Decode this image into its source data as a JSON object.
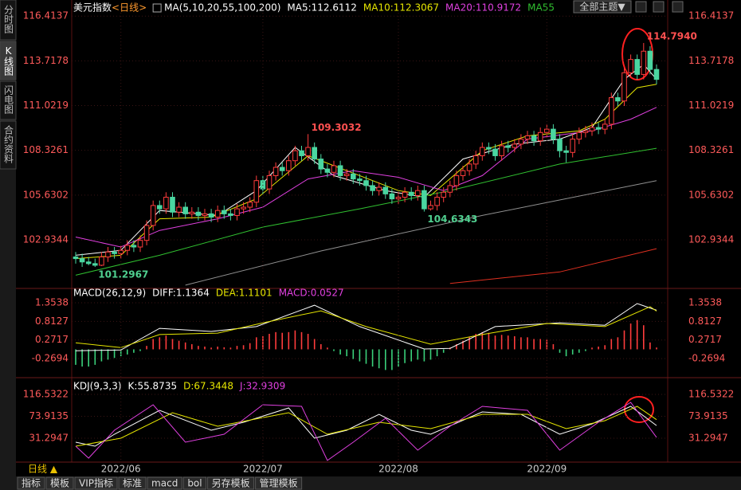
{
  "sidebar": [
    "分时图",
    "K线图",
    "闪电图",
    "合约资料"
  ],
  "toolbar": {
    "theme_button": "全部主题▼"
  },
  "bottom_tabs": [
    "指标",
    "模板",
    "VIP指标",
    "标准",
    "macd",
    "bol",
    "另存模板",
    "管理模板"
  ],
  "chart_data": [
    {
      "type": "candlestick",
      "title": "美元指数",
      "period": "<日线>",
      "indicator": "MA(5,10,20,55,100,200)",
      "up_color": "#ff3c3c",
      "down_color": "#4ad6a0",
      "candles": [
        [
          101.9,
          102.2,
          101.5,
          101.8
        ],
        [
          101.8,
          102.1,
          101.3,
          101.6
        ],
        [
          101.6,
          101.9,
          101.4,
          101.5
        ],
        [
          101.5,
          101.8,
          101.2967,
          101.4
        ],
        [
          101.4,
          102.2,
          101.35,
          101.9
        ],
        [
          101.9,
          102.5,
          101.6,
          102.2
        ],
        [
          102.2,
          102.5,
          101.8,
          102.1
        ],
        [
          102.1,
          102.6,
          101.8,
          102.3
        ],
        [
          102.3,
          102.9,
          102.0,
          102.6
        ],
        [
          102.6,
          102.9,
          102.2,
          102.5
        ],
        [
          102.5,
          103.2,
          102.2,
          102.9
        ],
        [
          102.9,
          104.1,
          102.6,
          103.8
        ],
        [
          103.8,
          105.3,
          103.5,
          105.0
        ],
        [
          105.0,
          105.3,
          104.5,
          104.8
        ],
        [
          104.8,
          105.8,
          104.5,
          105.5
        ],
        [
          105.5,
          105.8,
          104.3,
          104.6
        ],
        [
          104.6,
          105.2,
          104.3,
          104.9
        ],
        [
          104.9,
          105.2,
          104.2,
          104.5
        ],
        [
          104.5,
          104.9,
          104.2,
          104.6
        ],
        [
          104.6,
          104.9,
          104.1,
          104.4
        ],
        [
          104.4,
          104.8,
          104.1,
          104.5
        ],
        [
          104.5,
          104.8,
          104.0,
          104.3
        ],
        [
          104.3,
          105.0,
          104.0,
          104.7
        ],
        [
          104.7,
          105.0,
          104.2,
          104.5
        ],
        [
          104.5,
          104.8,
          104.1,
          104.4
        ],
        [
          104.4,
          105.1,
          104.1,
          104.8
        ],
        [
          104.8,
          105.2,
          104.5,
          104.9
        ],
        [
          104.9,
          105.5,
          104.6,
          105.2
        ],
        [
          105.2,
          106.8,
          104.9,
          106.5
        ],
        [
          106.5,
          106.8,
          105.7,
          106.0
        ],
        [
          106.0,
          107.1,
          105.7,
          106.8
        ],
        [
          106.8,
          107.6,
          106.5,
          107.3
        ],
        [
          107.3,
          107.6,
          106.8,
          107.1
        ],
        [
          107.1,
          108.0,
          106.8,
          107.7
        ],
        [
          107.7,
          108.6,
          107.4,
          108.3
        ],
        [
          108.3,
          108.6,
          107.7,
          108.0
        ],
        [
          108.0,
          109.3032,
          107.7,
          108.5
        ],
        [
          108.5,
          108.8,
          107.5,
          107.8
        ],
        [
          107.8,
          108.1,
          106.9,
          107.2
        ],
        [
          107.2,
          107.5,
          106.7,
          107.0
        ],
        [
          107.0,
          107.7,
          106.7,
          107.4
        ],
        [
          107.4,
          107.7,
          106.5,
          106.8
        ],
        [
          106.8,
          107.2,
          106.5,
          106.9
        ],
        [
          106.9,
          107.2,
          106.3,
          106.6
        ],
        [
          106.6,
          106.9,
          106.2,
          106.5
        ],
        [
          106.5,
          106.8,
          105.9,
          106.2
        ],
        [
          106.2,
          106.5,
          105.6,
          105.9
        ],
        [
          105.9,
          106.4,
          105.6,
          106.1
        ],
        [
          106.1,
          106.4,
          105.4,
          105.7
        ],
        [
          105.7,
          106.0,
          105.1,
          105.4
        ],
        [
          105.4,
          105.8,
          105.1,
          105.5
        ],
        [
          105.5,
          106.1,
          105.2,
          105.8
        ],
        [
          105.8,
          106.1,
          105.3,
          105.6
        ],
        [
          105.6,
          106.2,
          105.3,
          105.9
        ],
        [
          105.9,
          106.2,
          104.6343,
          104.8
        ],
        [
          104.8,
          105.3,
          104.7,
          105.0
        ],
        [
          105.0,
          105.8,
          104.7,
          105.5
        ],
        [
          105.5,
          106.1,
          105.2,
          105.8
        ],
        [
          105.8,
          106.5,
          105.5,
          106.2
        ],
        [
          106.2,
          107.1,
          105.9,
          106.8
        ],
        [
          106.8,
          107.4,
          106.5,
          107.1
        ],
        [
          107.1,
          107.8,
          106.8,
          107.5
        ],
        [
          107.5,
          108.3,
          107.2,
          108.0
        ],
        [
          108.0,
          108.8,
          107.7,
          108.5
        ],
        [
          108.5,
          108.8,
          108.1,
          108.4
        ],
        [
          108.4,
          108.7,
          107.7,
          108.0
        ],
        [
          108.0,
          108.9,
          107.7,
          108.6
        ],
        [
          108.6,
          108.9,
          108.2,
          108.5
        ],
        [
          108.5,
          109.0,
          108.2,
          108.7
        ],
        [
          108.7,
          109.3,
          108.4,
          109.0
        ],
        [
          109.0,
          109.5,
          108.7,
          109.2
        ],
        [
          109.2,
          109.5,
          108.6,
          108.9
        ],
        [
          108.9,
          109.7,
          108.6,
          109.4
        ],
        [
          109.4,
          109.9,
          109.1,
          109.6
        ],
        [
          109.6,
          109.9,
          108.7,
          109.0
        ],
        [
          109.0,
          109.3,
          107.9,
          108.3
        ],
        [
          108.3,
          108.6,
          107.6,
          108.2
        ],
        [
          108.2,
          109.3,
          107.9,
          109.0
        ],
        [
          109.0,
          109.7,
          108.7,
          109.4
        ],
        [
          109.4,
          109.8,
          109.1,
          109.5
        ],
        [
          109.5,
          110.0,
          109.2,
          109.7
        ],
        [
          109.7,
          110.0,
          109.3,
          109.6
        ],
        [
          109.6,
          110.2,
          109.3,
          109.9
        ],
        [
          109.9,
          111.8,
          109.6,
          111.5
        ],
        [
          111.5,
          111.8,
          111.0,
          111.3
        ],
        [
          111.3,
          113.3,
          111.0,
          113.0
        ],
        [
          113.0,
          114.1,
          112.7,
          113.8
        ],
        [
          113.8,
          114.1,
          112.6,
          112.9
        ],
        [
          112.9,
          114.794,
          112.6,
          114.3
        ],
        [
          114.3,
          114.6,
          112.9,
          113.2
        ],
        [
          113.2,
          113.5,
          112.3,
          112.6
        ]
      ],
      "annotations": [
        "114.7940",
        "109.3032",
        "104.6343",
        "101.2967"
      ],
      "series": [
        {
          "readout": "MA5:112.6112",
          "color": "#ffffff",
          "x": [
            0,
            7,
            13,
            22,
            28,
            34,
            40,
            48,
            54,
            60,
            68,
            75,
            80,
            85,
            88,
            90
          ],
          "values": [
            102.0,
            102.3,
            104.7,
            104.4,
            105.9,
            108.5,
            106.8,
            105.9,
            105.5,
            107.8,
            108.7,
            109.0,
            109.7,
            112.6,
            113.5,
            112.6112
          ]
        },
        {
          "readout": "MA10:112.3067",
          "color": "#e6e600",
          "x": [
            0,
            7,
            13,
            21,
            28,
            36,
            42,
            50,
            55,
            63,
            70,
            78,
            82,
            87,
            90
          ],
          "values": [
            101.8,
            102.0,
            104.2,
            104.3,
            105.4,
            108.0,
            107.1,
            105.9,
            105.6,
            108.3,
            109.2,
            109.5,
            110.2,
            112.1,
            112.3067
          ]
        },
        {
          "readout": "MA20:110.9172",
          "color": "#e040e0",
          "x": [
            0,
            7,
            13,
            22,
            29,
            36,
            43,
            50,
            57,
            63,
            70,
            80,
            86,
            90
          ],
          "values": [
            103.1,
            102.5,
            103.5,
            104.2,
            104.9,
            106.6,
            107.1,
            106.7,
            105.9,
            106.8,
            109.0,
            109.5,
            110.2,
            110.9172
          ]
        },
        {
          "readout": "MA55",
          "color": "#30c030",
          "x": [
            0,
            13,
            29,
            44,
            58,
            75,
            90
          ],
          "values": [
            100.8,
            102.0,
            103.7,
            104.8,
            105.9,
            107.5,
            108.45
          ]
        },
        {
          "color": "#909090",
          "x": [
            17,
            38,
            63,
            90
          ],
          "values": [
            100.2,
            102.26,
            104.4,
            106.5
          ]
        },
        {
          "color": "#e03020",
          "x": [
            58,
            75,
            90
          ],
          "values": [
            100.3,
            101.0,
            102.4
          ]
        }
      ],
      "ylim": [
        100.1,
        117.0
      ],
      "yticks": [
        116.4137,
        113.7178,
        111.0219,
        108.3261,
        105.6302,
        102.9344
      ]
    },
    {
      "type": "macd",
      "title": "MACD(26,12,9)",
      "histogram": {
        "readout": "MACD:0.0527",
        "readout_color": "#e040e0",
        "colors": [
          "#ff3c3c",
          "#3ad07a"
        ],
        "values": [
          -0.45,
          -0.5,
          -0.5,
          -0.45,
          -0.35,
          -0.3,
          -0.25,
          -0.2,
          -0.15,
          -0.1,
          -0.05,
          0.1,
          0.3,
          0.35,
          0.4,
          0.3,
          0.25,
          0.2,
          0.15,
          0.1,
          0.08,
          0.05,
          0.08,
          0.06,
          0.05,
          0.1,
          0.12,
          0.18,
          0.35,
          0.38,
          0.45,
          0.5,
          0.48,
          0.5,
          0.55,
          0.5,
          0.45,
          0.3,
          0.15,
          0.05,
          -0.05,
          -0.15,
          -0.2,
          -0.28,
          -0.35,
          -0.42,
          -0.5,
          -0.55,
          -0.6,
          -0.6,
          -0.5,
          -0.4,
          -0.35,
          -0.3,
          -0.35,
          -0.3,
          -0.2,
          -0.1,
          0.05,
          0.15,
          0.25,
          0.35,
          0.45,
          0.5,
          0.48,
          0.4,
          0.42,
          0.4,
          0.38,
          0.35,
          0.35,
          0.3,
          0.3,
          0.28,
          0.15,
          -0.1,
          -0.2,
          -0.15,
          -0.1,
          -0.05,
          0.05,
          0.08,
          0.12,
          0.3,
          0.35,
          0.55,
          0.75,
          0.85,
          0.7,
          0.2,
          0.0527
        ]
      },
      "series": [
        {
          "readout": "DIFF:1.1364",
          "color": "#ffffff",
          "x": [
            0,
            7,
            13,
            21,
            28,
            37,
            44,
            54,
            58,
            65,
            75,
            82,
            87,
            90
          ],
          "values": [
            -0.04,
            -0.02,
            0.61,
            0.52,
            0.66,
            1.28,
            0.66,
            0.01,
            0.03,
            0.66,
            0.77,
            0.7,
            1.33,
            1.1364
          ]
        },
        {
          "readout": "DEA:1.1101",
          "color": "#e6e600",
          "x": [
            0,
            7,
            13,
            22,
            29,
            38,
            45,
            55,
            63,
            73,
            82,
            89,
            90
          ],
          "values": [
            0.19,
            0.05,
            0.43,
            0.47,
            0.77,
            1.12,
            0.66,
            0.15,
            0.43,
            0.75,
            0.66,
            1.24,
            1.1101
          ]
        }
      ],
      "ylim": [
        -0.73,
        1.7
      ],
      "yticks": [
        1.3538,
        0.8127,
        0.2717,
        -0.2694
      ]
    },
    {
      "type": "line",
      "title": "KDJ(9,3,3)",
      "period": "日线 ▲",
      "series": [
        {
          "readout": "K:55.8735",
          "color": "#ffffff",
          "x": [
            0,
            3,
            6,
            13,
            21,
            26,
            33,
            37,
            42,
            47,
            52,
            55,
            63,
            69,
            75,
            80,
            86,
            90
          ],
          "values": [
            23.5,
            15.8,
            39,
            85.5,
            46.8,
            62.3,
            90.2,
            31.3,
            46.8,
            77.8,
            46.8,
            39,
            82.4,
            77.8,
            39,
            59.2,
            93.3,
            55.8735
          ]
        },
        {
          "readout": "D:67.3448",
          "color": "#e6e600",
          "x": [
            0,
            7,
            15,
            22,
            33,
            39,
            47,
            55,
            63,
            70,
            76,
            82,
            87,
            90
          ],
          "values": [
            15.8,
            31.3,
            80.9,
            54.5,
            80.9,
            39,
            62.3,
            49.9,
            77.8,
            77.8,
            49.9,
            65.4,
            93.3,
            67.3448
          ]
        },
        {
          "readout": "J:32.9309",
          "color": "#e040e0",
          "x": [
            0,
            2,
            6,
            12,
            17,
            23,
            29,
            35,
            39,
            43,
            48,
            53,
            58,
            63,
            70,
            75,
            81,
            86,
            90
          ],
          "values": [
            15.8,
            -7.5,
            46.8,
            96.4,
            23.5,
            39,
            96.4,
            93.3,
            -12,
            23.5,
            70,
            8,
            54.5,
            93.3,
            85.5,
            8,
            62.3,
            101,
            32.9309
          ]
        }
      ],
      "ylim": [
        -12.1,
        142.9
      ],
      "yticks": [
        116.5322,
        73.9135,
        31.2947
      ],
      "xticks": [
        {
          "value": 7,
          "label": "2022/06"
        },
        {
          "value": 29,
          "label": "2022/07"
        },
        {
          "value": 50,
          "label": "2022/08"
        },
        {
          "value": 73,
          "label": "2022/09"
        }
      ]
    }
  ]
}
